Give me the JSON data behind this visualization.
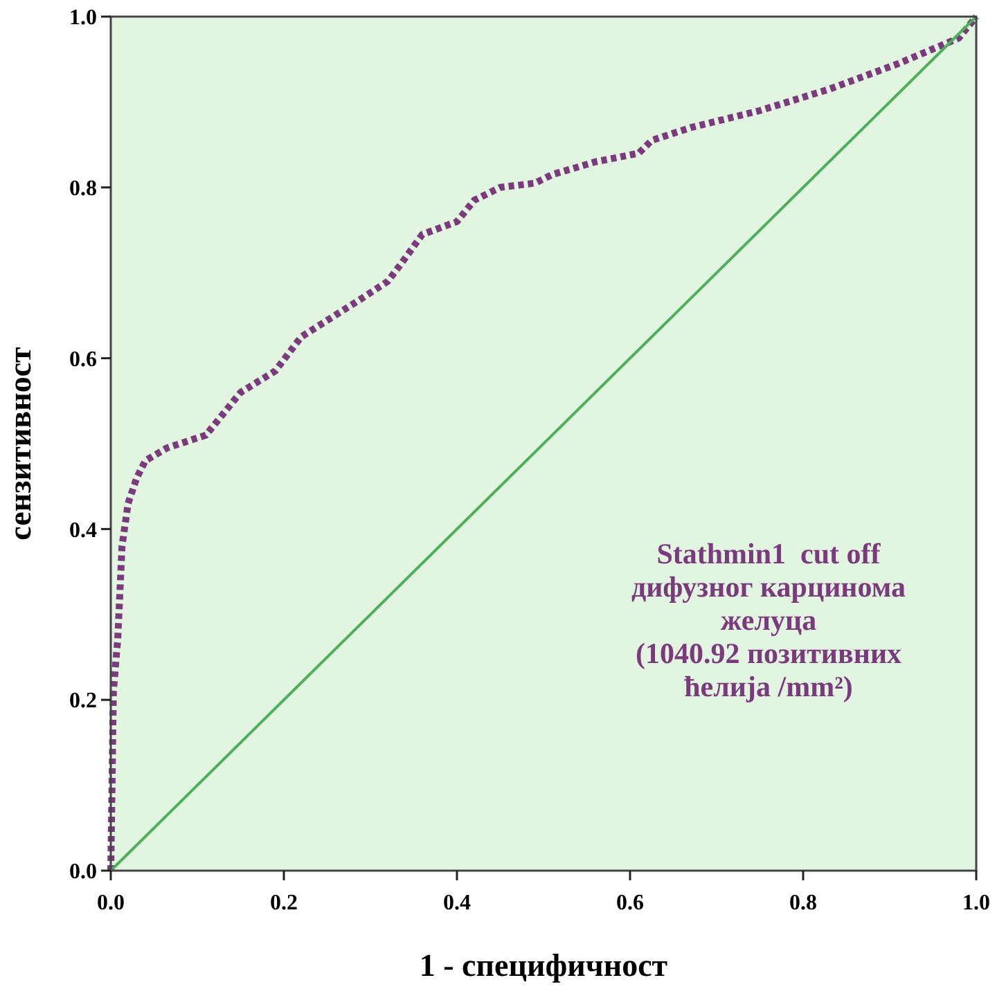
{
  "chart_data": {
    "type": "line",
    "xlabel": "1 - специфичност",
    "ylabel": "сензитивност",
    "annotations": [
      "Stathmin1  cut off\nдифузног карцинома\nжелуца\n(1040.92 позитивних\nћелија /mm²)"
    ],
    "series": [
      {
        "color": "#7b3a7e",
        "line_style": "dotted",
        "x": [
          0,
          0.003,
          0.008,
          0.013,
          0.02,
          0.03,
          0.04,
          0.065,
          0.11,
          0.15,
          0.19,
          0.22,
          0.29,
          0.32,
          0.335,
          0.36,
          0.4,
          0.42,
          0.45,
          0.49,
          0.51,
          0.56,
          0.61,
          0.625,
          0.67,
          0.75,
          0.83,
          0.91,
          0.98,
          1
        ],
        "values": [
          0,
          0.21,
          0.27,
          0.38,
          0.43,
          0.46,
          0.48,
          0.495,
          0.51,
          0.56,
          0.585,
          0.625,
          0.67,
          0.69,
          0.71,
          0.745,
          0.76,
          0.785,
          0.8,
          0.805,
          0.815,
          0.83,
          0.84,
          0.855,
          0.87,
          0.89,
          0.915,
          0.945,
          0.975,
          1
        ]
      },
      {
        "color": "#4caf5a",
        "line_style": "solid",
        "x": [
          0,
          1
        ],
        "values": [
          0,
          1
        ]
      }
    ],
    "xlim": [
      0,
      1
    ],
    "ylim": [
      0,
      1
    ],
    "xticks": [
      {
        "value": 0,
        "label": "0.0"
      },
      {
        "value": 0.2,
        "label": "0.2"
      },
      {
        "value": 0.4,
        "label": "0.4"
      },
      {
        "value": 0.6,
        "label": "0.6"
      },
      {
        "value": 0.8,
        "label": "0.8"
      },
      {
        "value": 1,
        "label": "1.0"
      }
    ],
    "yticks": [
      {
        "value": 0,
        "label": "0.0"
      },
      {
        "value": 0.2,
        "label": "0.2"
      },
      {
        "value": 0.4,
        "label": "0.4"
      },
      {
        "value": 0.6,
        "label": "0.6"
      },
      {
        "value": 0.8,
        "label": "0.8"
      },
      {
        "value": 1,
        "label": "1.0"
      }
    ],
    "grid": false
  }
}
